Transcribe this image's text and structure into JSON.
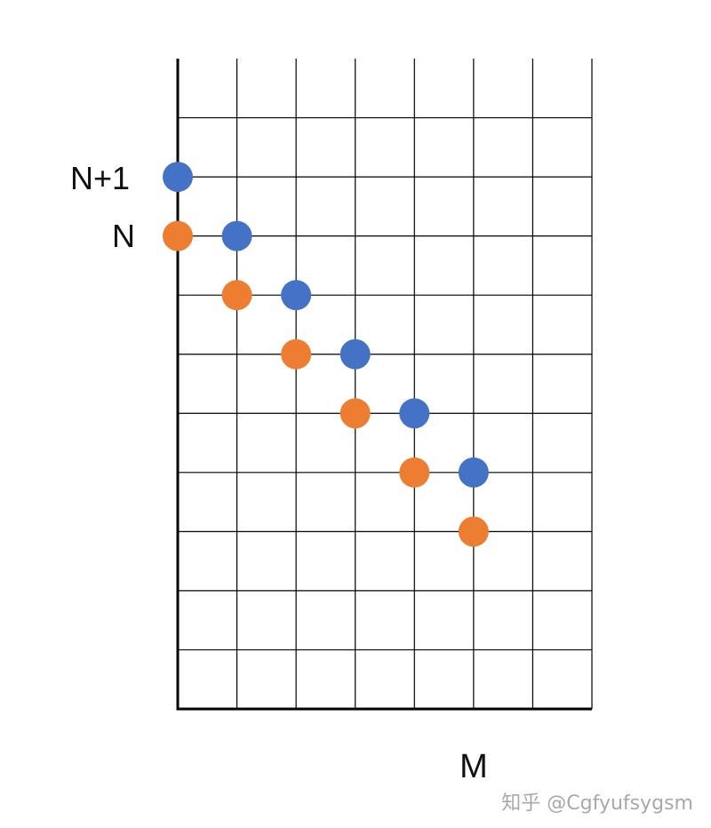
{
  "diagram": {
    "columns": 7,
    "rows": 11,
    "row_labels": [
      {
        "row": 2,
        "text": "N+1"
      },
      {
        "row": 3,
        "text": "N"
      }
    ],
    "axis_label": "M",
    "series": [
      {
        "color": "#4472C4",
        "points": [
          [
            0,
            2
          ],
          [
            1,
            3
          ],
          [
            2,
            4
          ],
          [
            3,
            5
          ],
          [
            4,
            6
          ],
          [
            5,
            7
          ]
        ]
      },
      {
        "color": "#ED7D31",
        "points": [
          [
            0,
            3
          ],
          [
            1,
            4
          ],
          [
            2,
            5
          ],
          [
            3,
            6
          ],
          [
            4,
            7
          ],
          [
            5,
            8
          ]
        ]
      }
    ]
  },
  "watermark": "知乎 @Cgfyufsygsm"
}
